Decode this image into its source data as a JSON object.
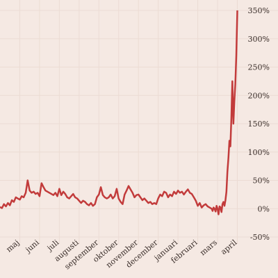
{
  "chart_data": {
    "type": "line",
    "title": "",
    "xlabel": "",
    "ylabel": "",
    "y_unit": "%",
    "ylim": [
      -50,
      350
    ],
    "yticks": [
      -50,
      0,
      50,
      100,
      150,
      200,
      250,
      300,
      350
    ],
    "ytick_labels": [
      "-50%",
      "0%",
      "50%",
      "100%",
      "150%",
      "200%",
      "250%",
      "300%",
      "350%"
    ],
    "xtick_labels": [
      "maj",
      "juni",
      "juli",
      "augusti",
      "september",
      "oktober",
      "november",
      "december",
      "januari",
      "februari",
      "mars",
      "april"
    ],
    "x_range_months": [
      0,
      12.3
    ],
    "grid": true,
    "colors": {
      "series": "#c23b3b",
      "background": "#f5e9e3",
      "grid": "#ecdcd4",
      "text": "#3a2e2a"
    },
    "series": [
      {
        "x": [
          0.0,
          0.1,
          0.2,
          0.3,
          0.4,
          0.5,
          0.6,
          0.7,
          0.8,
          0.9,
          1.0,
          1.1,
          1.2,
          1.3,
          1.4,
          1.5,
          1.6,
          1.7,
          1.8,
          1.9,
          2.0,
          2.1,
          2.2,
          2.3,
          2.4,
          2.5,
          2.6,
          2.7,
          2.8,
          2.9,
          3.0,
          3.1,
          3.2,
          3.3,
          3.4,
          3.5,
          3.6,
          3.7,
          3.8,
          3.9,
          4.0,
          4.1,
          4.2,
          4.3,
          4.4,
          4.5,
          4.6,
          4.7,
          4.8,
          4.9,
          5.0,
          5.1,
          5.2,
          5.3,
          5.4,
          5.5,
          5.6,
          5.7,
          5.8,
          5.9,
          6.0,
          6.1,
          6.2,
          6.3,
          6.4,
          6.5,
          6.6,
          6.7,
          6.8,
          6.9,
          7.0,
          7.1,
          7.2,
          7.3,
          7.4,
          7.5,
          7.6,
          7.7,
          7.8,
          7.9,
          8.0,
          8.1,
          8.2,
          8.3,
          8.4,
          8.5,
          8.6,
          8.7,
          8.8,
          8.9,
          9.0,
          9.1,
          9.2,
          9.3,
          9.4,
          9.5,
          9.6,
          9.7,
          9.8,
          9.9,
          10.0,
          10.1,
          10.2,
          10.3,
          10.4,
          10.5,
          10.6,
          10.7,
          10.75,
          10.8,
          10.85,
          10.9,
          10.95,
          11.0,
          11.05,
          11.1,
          11.15,
          11.2,
          11.25,
          11.3,
          11.35,
          11.4,
          11.45,
          11.5,
          11.55,
          11.6,
          11.65,
          11.7,
          11.75,
          11.8,
          11.85,
          11.9,
          11.95,
          12.0
        ],
        "values": [
          3,
          1,
          8,
          4,
          10,
          6,
          15,
          12,
          20,
          18,
          16,
          22,
          20,
          28,
          50,
          32,
          28,
          30,
          26,
          28,
          22,
          45,
          38,
          32,
          30,
          28,
          26,
          24,
          28,
          22,
          35,
          24,
          30,
          26,
          20,
          18,
          22,
          26,
          20,
          18,
          14,
          10,
          14,
          12,
          8,
          6,
          10,
          5,
          8,
          20,
          25,
          38,
          24,
          20,
          18,
          20,
          25,
          18,
          22,
          35,
          18,
          12,
          8,
          25,
          32,
          40,
          34,
          28,
          20,
          24,
          25,
          20,
          15,
          18,
          14,
          10,
          12,
          8,
          10,
          8,
          18,
          25,
          22,
          30,
          28,
          20,
          25,
          22,
          30,
          26,
          32,
          28,
          30,
          25,
          30,
          34,
          28,
          26,
          20,
          14,
          5,
          10,
          2,
          6,
          8,
          4,
          2,
          0,
          -4,
          2,
          0,
          -5,
          5,
          0,
          -10,
          4,
          2,
          -6,
          8,
          12,
          5,
          15,
          30,
          65,
          90,
          120,
          110,
          160,
          225,
          150,
          190,
          220,
          270,
          350
        ]
      }
    ]
  }
}
